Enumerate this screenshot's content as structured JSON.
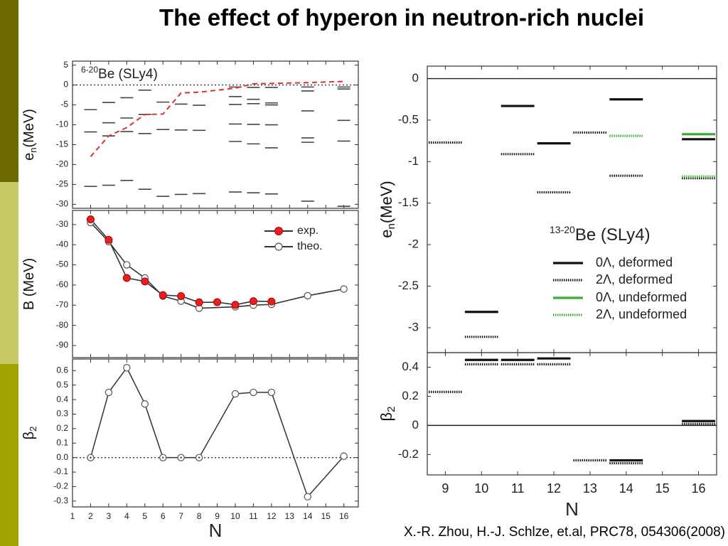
{
  "slide": {
    "title": "The effect of hyperon in neutron-rich nuclei",
    "citation": "X.-R. Zhou, H.-J. Schlze, et.al, PRC78, 054306(2008)",
    "stripe_colors": [
      "#6b6b00",
      "#c8c864",
      "#a3a300"
    ]
  },
  "chart_data": [
    {
      "id": "left-top",
      "type": "scatter",
      "title_sup": "6-20",
      "title_main": "Be (SLy4)",
      "ylabel": "e",
      "ylabel_sub": "n",
      "ylabel_unit": "(MeV)",
      "ylim": [
        -31,
        6
      ],
      "yticks": [
        5,
        0,
        -5,
        -10,
        -15,
        -20,
        -25,
        -30
      ],
      "xlim": [
        1,
        16.8
      ],
      "levels": [
        {
          "x": 2,
          "e": [
            -6.2,
            -11.8,
            -25.5
          ]
        },
        {
          "x": 3,
          "e": [
            -4.4,
            -9.5,
            -12.8,
            -25.2
          ]
        },
        {
          "x": 4,
          "e": [
            -3.2,
            -8.3,
            -11.7,
            -24
          ]
        },
        {
          "x": 5,
          "e": [
            -1.3,
            -7.4,
            -12.2,
            -26.2
          ]
        },
        {
          "x": 6,
          "e": [
            -4.3,
            -11.2,
            -28
          ]
        },
        {
          "x": 7,
          "e": [
            -4.8,
            -11.3,
            -27.5
          ]
        },
        {
          "x": 8,
          "e": [
            -5.1,
            -11.4,
            -27.3
          ]
        },
        {
          "x": 10,
          "e": [
            -0.5,
            -2.9,
            -4.9,
            -9.8,
            -14.2,
            -26.9
          ]
        },
        {
          "x": 11,
          "e": [
            -0.6,
            -3.6,
            -4.7,
            -9.9,
            -14.8,
            -27.1
          ]
        },
        {
          "x": 12,
          "e": [
            -0.6,
            -4.5,
            -5,
            -10,
            -15.8,
            -27.4
          ]
        },
        {
          "x": 14,
          "e": [
            -0.5,
            -1.5,
            -6.5,
            -13.3,
            -14.4,
            -29.2
          ]
        },
        {
          "x": 16,
          "e": [
            -0.5,
            -1,
            -8.9,
            -14.1,
            -30.5
          ]
        }
      ],
      "fermi_line": {
        "x": [
          2,
          3,
          4,
          5,
          6,
          7,
          8,
          10,
          11,
          12,
          14,
          16
        ],
        "y": [
          -18,
          -12.8,
          -10.7,
          -7.4,
          -7.3,
          -2,
          -1.8,
          -0.8,
          0.3,
          0.4,
          0.6,
          0.9
        ]
      },
      "zero_line": true
    },
    {
      "id": "left-mid",
      "type": "line",
      "ylabel": "B (MeV)",
      "ylim": [
        -96,
        -23
      ],
      "yticks": [
        -30,
        -40,
        -50,
        -60,
        -70,
        -80,
        -90
      ],
      "xlim": [
        1,
        16.8
      ],
      "series": [
        {
          "name": "exp.",
          "x": [
            2,
            3,
            4,
            5,
            6,
            7,
            8,
            9,
            10,
            11,
            12
          ],
          "y": [
            -27.4,
            -37.6,
            -56.5,
            -58.2,
            -65,
            -65.5,
            -68.6,
            -68.5,
            -69.8,
            -68,
            -68.2
          ]
        },
        {
          "name": "theo.",
          "x": [
            2,
            3,
            4,
            5,
            6,
            7,
            8,
            10,
            11,
            12,
            14,
            16
          ],
          "y": [
            -29,
            -38.5,
            -50,
            -56.5,
            -65.5,
            -68,
            -71.5,
            -70.8,
            -70,
            -69.6,
            -65.3,
            -62
          ]
        }
      ]
    },
    {
      "id": "left-bottom",
      "type": "line",
      "ylabel": "β",
      "ylabel_sub": "2",
      "ylim": [
        -0.34,
        0.68
      ],
      "yticks": [
        0.6,
        0.5,
        0.4,
        0.3,
        0.2,
        0.1,
        0.0,
        -0.1,
        -0.2,
        -0.3
      ],
      "ytick_labels": [
        "0.6",
        "0.5",
        "0.4",
        "0.3",
        "0.2",
        "0.1",
        "0.0",
        "-0.1",
        "-0.2",
        "-0.3"
      ],
      "xlim": [
        1,
        16.8
      ],
      "xticks": [
        1,
        2,
        3,
        4,
        5,
        6,
        7,
        8,
        9,
        10,
        11,
        12,
        13,
        14,
        15,
        16
      ],
      "xlabel": "N",
      "series": [
        {
          "name": "β2",
          "x": [
            2,
            3,
            4,
            5,
            6,
            7,
            8,
            10,
            11,
            12,
            14,
            16
          ],
          "y": [
            0,
            0.45,
            0.62,
            0.37,
            0,
            0,
            0,
            0.44,
            0.45,
            0.45,
            -0.27,
            0.01
          ]
        }
      ],
      "zero_line": true
    },
    {
      "id": "right-top",
      "type": "scatter",
      "title_sup": "13-20",
      "title_main": "Be (SLy4)",
      "ylabel": "e",
      "ylabel_sub": "n",
      "ylabel_unit": "(MeV)",
      "ylim": [
        -3.3,
        0.15
      ],
      "yticks": [
        0,
        -0.5,
        -1,
        -1.5,
        -2,
        -2.5,
        -3
      ],
      "ytick_labels": [
        "0",
        "-0.5",
        "-1",
        "-1.5",
        "-2",
        "-2.5",
        "-3"
      ],
      "xlim": [
        8.5,
        16.5
      ],
      "legend": {
        "position": "bottom-right",
        "entries": [
          {
            "label": "0Λ, deformed",
            "color": "#000000",
            "style": "solid"
          },
          {
            "label": "2Λ, deformed",
            "color": "#000000",
            "style": "dotted"
          },
          {
            "label": "0Λ, undeformed",
            "color": "#3bb034",
            "style": "solid"
          },
          {
            "label": "2Λ, undeformed",
            "color": "#3bb034",
            "style": "dotted"
          }
        ]
      },
      "segments": [
        {
          "x0": 8.5,
          "x1": 9.5,
          "y": -0.77,
          "series": "2Λ, deformed"
        },
        {
          "x0": 9.5,
          "x1": 10.5,
          "y": -2.81,
          "series": "0Λ, deformed"
        },
        {
          "x0": 9.5,
          "x1": 10.5,
          "y": -3.11,
          "series": "2Λ, deformed"
        },
        {
          "x0": 10.5,
          "x1": 11.5,
          "y": -0.33,
          "series": "0Λ, deformed"
        },
        {
          "x0": 10.5,
          "x1": 11.5,
          "y": -0.91,
          "series": "2Λ, deformed"
        },
        {
          "x0": 11.5,
          "x1": 12.5,
          "y": -0.78,
          "series": "0Λ, deformed"
        },
        {
          "x0": 11.5,
          "x1": 12.5,
          "y": -1.37,
          "series": "2Λ, deformed"
        },
        {
          "x0": 12.5,
          "x1": 13.5,
          "y": -0.65,
          "series": "2Λ, deformed"
        },
        {
          "x0": 13.5,
          "x1": 14.5,
          "y": -0.25,
          "series": "0Λ, deformed"
        },
        {
          "x0": 13.5,
          "x1": 14.5,
          "y": -1.17,
          "series": "2Λ, deformed"
        },
        {
          "x0": 13.5,
          "x1": 14.5,
          "y": -0.69,
          "series": "2Λ, undeformed"
        },
        {
          "x0": 15.5,
          "x1": 16.5,
          "y": -0.73,
          "series": "0Λ, deformed"
        },
        {
          "x0": 15.5,
          "x1": 16.5,
          "y": -0.67,
          "series": "0Λ, undeformed"
        },
        {
          "x0": 15.5,
          "x1": 16.5,
          "y": -1.2,
          "series": "2Λ, deformed"
        },
        {
          "x0": 15.5,
          "x1": 16.5,
          "y": -1.18,
          "series": "2Λ, undeformed"
        }
      ],
      "zero_line": true
    },
    {
      "id": "right-bottom",
      "type": "scatter",
      "ylabel": "β",
      "ylabel_sub": "2",
      "ylim": [
        -0.34,
        0.5
      ],
      "yticks": [
        0.4,
        0.2,
        0,
        -0.2
      ],
      "ytick_labels": [
        "0.4",
        "0.2",
        "0",
        "-0.2"
      ],
      "xlim": [
        8.5,
        16.5
      ],
      "xticks": [
        9,
        10,
        11,
        12,
        13,
        14,
        15,
        16
      ],
      "xlabel": "N",
      "segments": [
        {
          "x0": 8.5,
          "x1": 9.5,
          "y": 0.23,
          "series": "2Λ, deformed"
        },
        {
          "x0": 9.5,
          "x1": 10.5,
          "y": 0.45,
          "series": "0Λ, deformed"
        },
        {
          "x0": 9.5,
          "x1": 10.5,
          "y": 0.42,
          "series": "2Λ, deformed"
        },
        {
          "x0": 10.5,
          "x1": 11.5,
          "y": 0.45,
          "series": "0Λ, deformed"
        },
        {
          "x0": 10.5,
          "x1": 11.5,
          "y": 0.42,
          "series": "2Λ, deformed"
        },
        {
          "x0": 11.5,
          "x1": 12.5,
          "y": 0.46,
          "series": "0Λ, deformed"
        },
        {
          "x0": 11.5,
          "x1": 12.5,
          "y": 0.42,
          "series": "2Λ, deformed"
        },
        {
          "x0": 12.5,
          "x1": 13.5,
          "y": -0.24,
          "series": "2Λ, deformed"
        },
        {
          "x0": 13.5,
          "x1": 14.5,
          "y": -0.24,
          "series": "0Λ, deformed"
        },
        {
          "x0": 13.5,
          "x1": 14.5,
          "y": -0.26,
          "series": "2Λ, deformed"
        },
        {
          "x0": 15.5,
          "x1": 16.5,
          "y": 0.03,
          "series": "0Λ, deformed"
        },
        {
          "x0": 15.5,
          "x1": 16.5,
          "y": 0.01,
          "series": "2Λ, deformed"
        }
      ],
      "zero_line": true
    }
  ]
}
